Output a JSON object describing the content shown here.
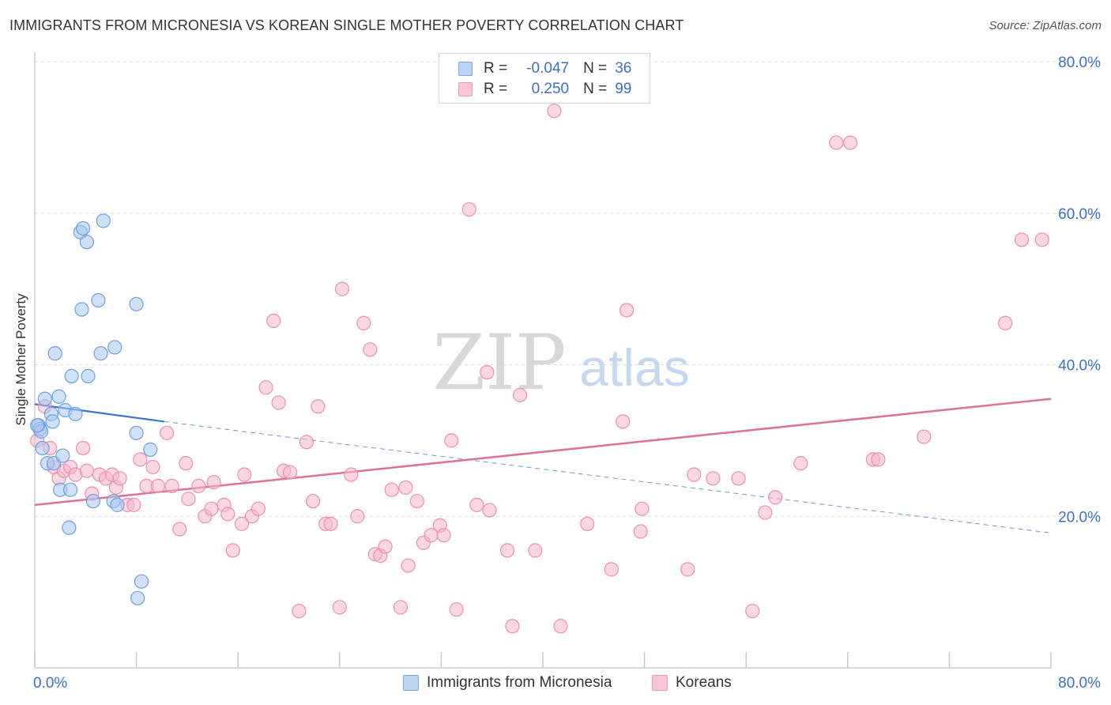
{
  "header": {
    "title": "IMMIGRANTS FROM MICRONESIA VS KOREAN SINGLE MOTHER POVERTY CORRELATION CHART",
    "source": "Source: ZipAtlas.com"
  },
  "watermark": {
    "zip": "ZIP",
    "atlas": "atlas"
  },
  "legend": {
    "rows": [
      {
        "r_label": "R =",
        "r_value": "-0.047",
        "n_label": "N =",
        "n_value": "36"
      },
      {
        "r_label": "R =",
        "r_value": "0.250",
        "n_label": "N =",
        "n_value": "99"
      }
    ]
  },
  "bottom_legend": {
    "micronesia": "Immigrants from Micronesia",
    "koreans": "Koreans"
  },
  "colors": {
    "blue_fill": "#a8c8f0",
    "blue_stroke": "#6f9fe0",
    "blue_line": "#3a74d0",
    "pink_fill": "#f6b6cc",
    "pink_stroke": "#ec8fb0",
    "pink_line": "#e0709a",
    "axis_label": "#3b6fc9",
    "grid": "#dcdcdc"
  },
  "chart_data": {
    "type": "scatter",
    "title": "IMMIGRANTS FROM MICRONESIA VS KOREAN SINGLE MOTHER POVERTY CORRELATION CHART",
    "xlabel": "",
    "ylabel": "Single Mother Poverty",
    "xlim": [
      0,
      80
    ],
    "ylim": [
      0,
      80
    ],
    "x_tick_labels": [
      "0.0%",
      "80.0%"
    ],
    "y_tick_labels": [
      "20.0%",
      "40.0%",
      "60.0%",
      "80.0%"
    ],
    "y_ticks": [
      20,
      40,
      60,
      80
    ],
    "x_minor_ticks": [
      0,
      8,
      16,
      24,
      32,
      40,
      48,
      56,
      64,
      72,
      80
    ],
    "grid": true,
    "legend_position": "top-center",
    "series": [
      {
        "name": "Immigrants from Micronesia",
        "color": "#6f9fe0",
        "R": -0.047,
        "N": 36,
        "trend": {
          "x": [
            0,
            10.2
          ],
          "y": [
            34.8,
            32.5
          ],
          "dashed_to_x": 80,
          "dashed_end_y": 17.8
        },
        "points": [
          [
            0.3,
            32.0
          ],
          [
            0.4,
            31.5
          ],
          [
            0.5,
            31.2
          ],
          [
            0.6,
            29.0
          ],
          [
            0.8,
            35.5
          ],
          [
            1.0,
            27.0
          ],
          [
            1.3,
            33.5
          ],
          [
            1.4,
            32.5
          ],
          [
            1.6,
            41.5
          ],
          [
            1.9,
            35.8
          ],
          [
            1.5,
            27.0
          ],
          [
            2.2,
            28.0
          ],
          [
            2.0,
            23.5
          ],
          [
            2.4,
            34.0
          ],
          [
            2.7,
            18.5
          ],
          [
            2.8,
            23.5
          ],
          [
            2.9,
            38.5
          ],
          [
            3.2,
            33.5
          ],
          [
            3.6,
            57.5
          ],
          [
            3.7,
            47.3
          ],
          [
            3.8,
            58.0
          ],
          [
            4.1,
            56.2
          ],
          [
            4.2,
            38.5
          ],
          [
            4.6,
            22.0
          ],
          [
            5.0,
            48.5
          ],
          [
            5.2,
            41.5
          ],
          [
            5.4,
            59.0
          ],
          [
            6.2,
            22.0
          ],
          [
            6.3,
            42.3
          ],
          [
            6.5,
            21.5
          ],
          [
            8.0,
            48.0
          ],
          [
            8.0,
            31.0
          ],
          [
            8.1,
            9.2
          ],
          [
            8.4,
            11.4
          ],
          [
            9.1,
            28.8
          ],
          [
            0.2,
            32.0
          ]
        ]
      },
      {
        "name": "Koreans",
        "color": "#ec8fb0",
        "R": 0.25,
        "N": 99,
        "trend": {
          "x": [
            0,
            80
          ],
          "y": [
            21.5,
            35.5
          ]
        },
        "points": [
          [
            0.2,
            30.0
          ],
          [
            0.8,
            34.5
          ],
          [
            1.2,
            29.0
          ],
          [
            1.5,
            26.5
          ],
          [
            1.9,
            25.0
          ],
          [
            2.3,
            26.0
          ],
          [
            2.8,
            26.5
          ],
          [
            3.2,
            25.5
          ],
          [
            3.8,
            29.0
          ],
          [
            4.1,
            26.0
          ],
          [
            4.5,
            23.0
          ],
          [
            5.1,
            25.5
          ],
          [
            5.6,
            25.0
          ],
          [
            6.1,
            25.5
          ],
          [
            6.4,
            23.8
          ],
          [
            6.7,
            25.0
          ],
          [
            7.3,
            21.5
          ],
          [
            7.8,
            21.5
          ],
          [
            8.3,
            27.5
          ],
          [
            8.8,
            24.0
          ],
          [
            9.3,
            26.5
          ],
          [
            9.7,
            24.0
          ],
          [
            10.4,
            31.0
          ],
          [
            10.8,
            24.0
          ],
          [
            11.4,
            18.3
          ],
          [
            11.9,
            27.0
          ],
          [
            12.1,
            22.3
          ],
          [
            12.9,
            24.0
          ],
          [
            13.4,
            20.0
          ],
          [
            13.9,
            21.0
          ],
          [
            14.1,
            24.5
          ],
          [
            14.9,
            21.5
          ],
          [
            15.2,
            20.3
          ],
          [
            15.6,
            15.5
          ],
          [
            16.3,
            19.0
          ],
          [
            16.5,
            25.5
          ],
          [
            17.1,
            20.0
          ],
          [
            17.6,
            21.0
          ],
          [
            18.2,
            37.0
          ],
          [
            18.8,
            45.8
          ],
          [
            19.2,
            35.0
          ],
          [
            19.6,
            26.0
          ],
          [
            20.1,
            25.8
          ],
          [
            20.8,
            7.5
          ],
          [
            21.4,
            29.8
          ],
          [
            21.9,
            22.0
          ],
          [
            22.3,
            34.5
          ],
          [
            22.9,
            19.0
          ],
          [
            23.3,
            19.0
          ],
          [
            24.0,
            8.0
          ],
          [
            24.2,
            50.0
          ],
          [
            24.9,
            25.5
          ],
          [
            25.4,
            20.0
          ],
          [
            25.9,
            45.5
          ],
          [
            26.4,
            42.0
          ],
          [
            26.8,
            15.0
          ],
          [
            27.2,
            14.8
          ],
          [
            27.6,
            16.0
          ],
          [
            28.1,
            23.5
          ],
          [
            28.8,
            8.0
          ],
          [
            29.2,
            23.8
          ],
          [
            29.4,
            13.5
          ],
          [
            30.1,
            22.0
          ],
          [
            30.6,
            16.5
          ],
          [
            31.2,
            17.5
          ],
          [
            31.9,
            18.8
          ],
          [
            32.2,
            17.5
          ],
          [
            32.8,
            30.0
          ],
          [
            33.2,
            7.7
          ],
          [
            34.2,
            60.5
          ],
          [
            34.8,
            21.5
          ],
          [
            35.6,
            39.0
          ],
          [
            35.8,
            20.8
          ],
          [
            37.2,
            15.5
          ],
          [
            37.6,
            5.5
          ],
          [
            38.2,
            36.0
          ],
          [
            39.4,
            15.5
          ],
          [
            40.9,
            73.5
          ],
          [
            41.4,
            5.5
          ],
          [
            43.5,
            19.0
          ],
          [
            45.4,
            13.0
          ],
          [
            46.3,
            32.5
          ],
          [
            46.6,
            47.2
          ],
          [
            47.7,
            18.0
          ],
          [
            47.8,
            21.0
          ],
          [
            51.4,
            13.0
          ],
          [
            51.9,
            25.5
          ],
          [
            53.4,
            25.0
          ],
          [
            55.4,
            25.0
          ],
          [
            56.5,
            7.5
          ],
          [
            57.5,
            20.5
          ],
          [
            58.3,
            22.5
          ],
          [
            60.3,
            27.0
          ],
          [
            63.1,
            69.3
          ],
          [
            64.2,
            69.3
          ],
          [
            66.0,
            27.5
          ],
          [
            66.4,
            27.5
          ],
          [
            70.0,
            30.5
          ],
          [
            76.4,
            45.5
          ],
          [
            77.7,
            56.5
          ],
          [
            79.3,
            56.5
          ]
        ]
      }
    ]
  }
}
